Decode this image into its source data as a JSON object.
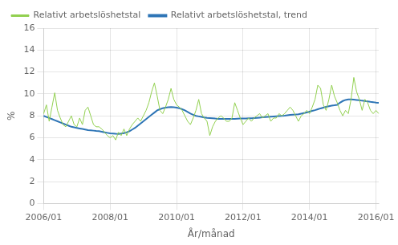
{
  "chart_data": {
    "type": "line",
    "xlabel": "År/månad",
    "ylabel": "%",
    "categories": [
      "2006/01",
      null,
      null,
      null,
      null,
      null,
      null,
      null,
      null,
      null,
      null,
      null,
      null,
      null,
      null,
      null,
      null,
      null,
      null,
      null,
      null,
      null,
      null,
      null,
      "2008/01",
      null,
      null,
      null,
      null,
      null,
      null,
      null,
      null,
      null,
      null,
      null,
      null,
      null,
      null,
      null,
      null,
      null,
      null,
      null,
      null,
      null,
      null,
      null,
      "2010/01",
      null,
      null,
      null,
      null,
      null,
      null,
      null,
      null,
      null,
      null,
      null,
      null,
      null,
      null,
      null,
      null,
      null,
      null,
      null,
      null,
      null,
      null,
      null,
      "2012/01",
      null,
      null,
      null,
      null,
      null,
      null,
      null,
      null,
      null,
      null,
      null,
      null,
      null,
      null,
      null,
      null,
      null,
      null,
      null,
      null,
      null,
      null,
      null,
      "2014/01",
      null,
      null,
      null,
      null,
      null,
      null,
      null,
      null,
      null,
      null,
      null,
      null,
      null,
      null,
      null,
      null,
      null,
      null,
      null,
      null,
      null,
      null,
      null,
      "2016/01",
      null
    ],
    "series": [
      {
        "name": "Relativt arbetslöshetstal",
        "color": "#92d050",
        "values": [
          8.2,
          9.0,
          7.5,
          8.8,
          10.1,
          8.5,
          7.8,
          7.2,
          7.0,
          7.5,
          8.0,
          7.2,
          7.0,
          7.8,
          7.2,
          8.5,
          8.8,
          8.0,
          7.2,
          7.0,
          7.0,
          6.8,
          6.5,
          6.2,
          6.0,
          6.2,
          5.8,
          6.5,
          6.2,
          6.8,
          6.2,
          6.8,
          7.2,
          7.5,
          7.8,
          7.5,
          8.0,
          8.5,
          9.2,
          10.2,
          11.0,
          9.8,
          8.5,
          8.2,
          8.8,
          9.5,
          10.5,
          9.5,
          9.0,
          8.8,
          8.5,
          8.0,
          7.5,
          7.2,
          7.8,
          8.5,
          9.5,
          8.2,
          7.8,
          7.5,
          6.2,
          7.0,
          7.5,
          7.8,
          8.0,
          7.8,
          7.5,
          7.5,
          7.8,
          9.2,
          8.5,
          7.8,
          7.2,
          7.5,
          7.8,
          7.5,
          7.8,
          8.0,
          8.2,
          7.8,
          8.0,
          8.2,
          7.5,
          7.8,
          7.8,
          8.2,
          8.0,
          8.2,
          8.5,
          8.8,
          8.5,
          8.0,
          7.5,
          8.0,
          8.2,
          8.5,
          8.2,
          8.8,
          9.5,
          10.8,
          10.5,
          9.0,
          8.5,
          9.5,
          10.8,
          9.8,
          9.2,
          8.5,
          8.0,
          8.5,
          8.2,
          9.5,
          11.5,
          10.2,
          9.5,
          8.5,
          9.5,
          9.2,
          8.5,
          8.2,
          8.5,
          8.2
        ]
      },
      {
        "name": "Relativt arbetslöshetstal, trend",
        "color": "#2e75b6",
        "values": [
          8.0,
          7.9,
          7.8,
          7.7,
          7.6,
          7.5,
          7.4,
          7.3,
          7.2,
          7.1,
          7.0,
          6.95,
          6.9,
          6.85,
          6.8,
          6.75,
          6.7,
          6.68,
          6.65,
          6.62,
          6.6,
          6.55,
          6.5,
          6.45,
          6.4,
          6.38,
          6.36,
          6.35,
          6.38,
          6.42,
          6.5,
          6.6,
          6.75,
          6.9,
          7.1,
          7.3,
          7.5,
          7.7,
          7.9,
          8.1,
          8.3,
          8.5,
          8.6,
          8.7,
          8.75,
          8.78,
          8.8,
          8.78,
          8.75,
          8.7,
          8.6,
          8.5,
          8.35,
          8.2,
          8.1,
          8.0,
          7.95,
          7.9,
          7.85,
          7.82,
          7.8,
          7.78,
          7.75,
          7.73,
          7.72,
          7.72,
          7.72,
          7.72,
          7.72,
          7.73,
          7.74,
          7.75,
          7.75,
          7.76,
          7.77,
          7.78,
          7.8,
          7.82,
          7.84,
          7.86,
          7.88,
          7.9,
          7.92,
          7.94,
          7.96,
          7.98,
          8.0,
          8.02,
          8.05,
          8.08,
          8.1,
          8.12,
          8.15,
          8.2,
          8.25,
          8.3,
          8.38,
          8.45,
          8.52,
          8.6,
          8.68,
          8.75,
          8.82,
          8.88,
          8.93,
          8.96,
          9.0,
          9.2,
          9.35,
          9.45,
          9.5,
          9.5,
          9.48,
          9.45,
          9.42,
          9.38,
          9.35,
          9.32,
          9.28,
          9.25,
          9.2,
          9.18
        ]
      }
    ],
    "ylim": [
      0,
      16
    ],
    "yticks": [
      0,
      2,
      4,
      6,
      8,
      10,
      12,
      14,
      16
    ],
    "grid": true,
    "legend": "upper left"
  }
}
